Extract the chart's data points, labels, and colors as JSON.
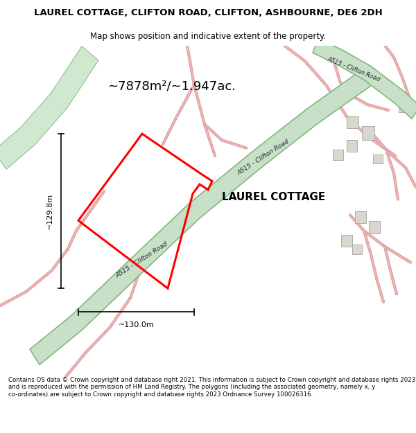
{
  "title_line1": "LAUREL COTTAGE, CLIFTON ROAD, CLIFTON, ASHBOURNE, DE6 2DH",
  "title_line2": "Map shows position and indicative extent of the property.",
  "area_text": "~7878m²/~1.947ac.",
  "property_label": "LAUREL COTTAGE",
  "dim_height": "~129.8m",
  "dim_width": "~130.0m",
  "road_label": "A515 - Clifton Road",
  "footer_text": "Contains OS data © Crown copyright and database right 2021. This information is subject to Crown copyright and database rights 2023 and is reproduced with the permission of HM Land Registry. The polygons (including the associated geometry, namely x, y co-ordinates) are subject to Crown copyright and database rights 2023 Ordnance Survey 100026316.",
  "bg_color": "#ffffff",
  "road_green_fill": "#c8dfc8",
  "road_green_edge": "#80b880",
  "property_color": "#ff0000",
  "road_pink": "#f0b8b8",
  "road_pink_edge": "#d89898",
  "building_fill": "#d8d8ce",
  "building_edge": "#aaaaaa",
  "fig_width": 6.0,
  "fig_height": 6.25,
  "title_fontsize": 9.5,
  "subtitle_fontsize": 8.5,
  "area_fontsize": 13,
  "dim_fontsize": 8,
  "prop_label_fontsize": 11,
  "footer_fontsize": 6.2
}
